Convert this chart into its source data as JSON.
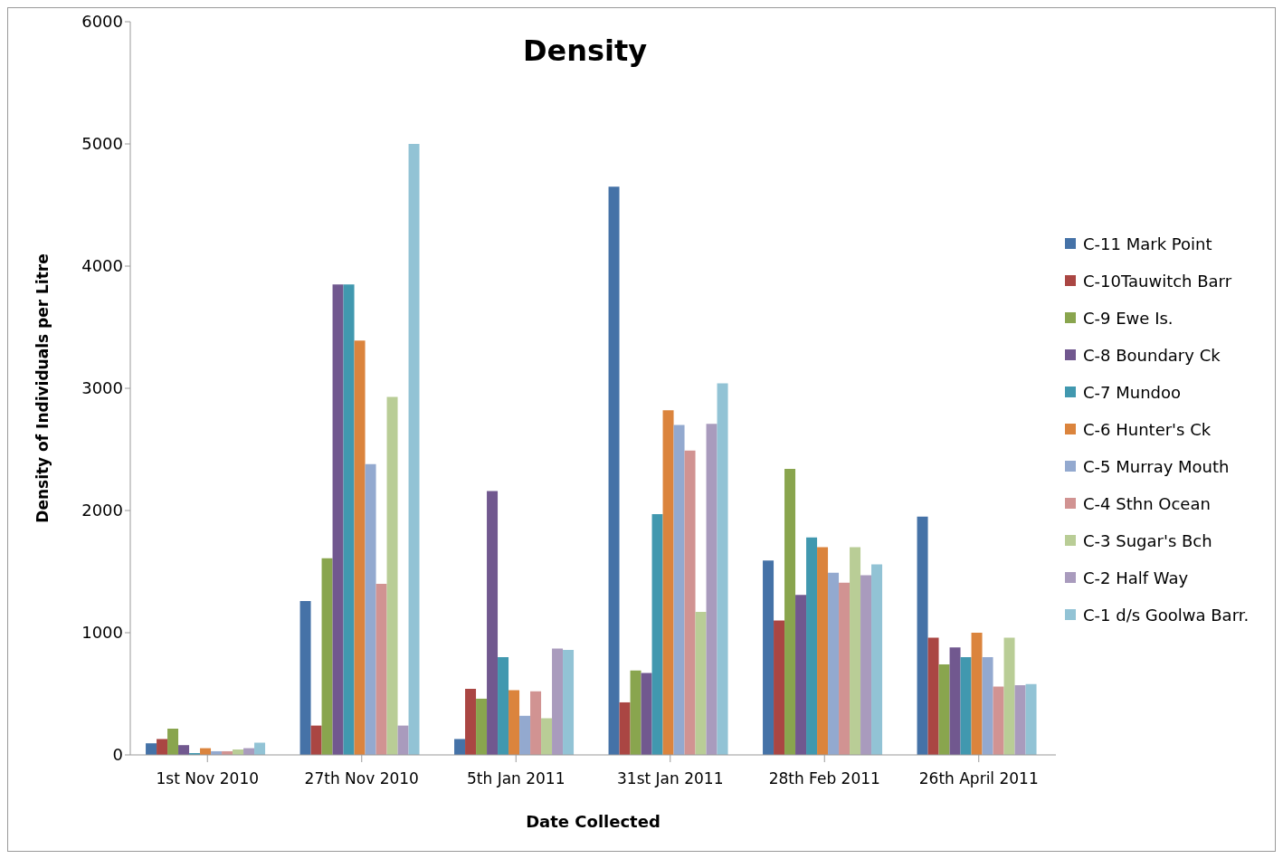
{
  "chart_data": {
    "type": "bar",
    "title": "Density",
    "xlabel": "Date Collected",
    "ylabel": "Density of Individuals per Litre",
    "categories": [
      "1st Nov 2010",
      "27th Nov 2010",
      "5th Jan 2011",
      "31st Jan 2011",
      "28th Feb 2011",
      "26th April 2011"
    ],
    "series": [
      {
        "name": "C-11 Mark Point",
        "color": "#4572a7",
        "values": [
          95,
          1260,
          130,
          4650,
          1590,
          1950
        ]
      },
      {
        "name": "C-10Tauwitch Barr",
        "color": "#aa4643",
        "values": [
          130,
          240,
          540,
          430,
          1100,
          960
        ]
      },
      {
        "name": "C-9 Ewe Is.",
        "color": "#89a54e",
        "values": [
          215,
          1610,
          460,
          690,
          2340,
          740
        ]
      },
      {
        "name": "C-8 Boundary Ck",
        "color": "#71588f",
        "values": [
          80,
          3850,
          2160,
          670,
          1310,
          880
        ]
      },
      {
        "name": "C-7 Mundoo",
        "color": "#4198af",
        "values": [
          15,
          3850,
          800,
          1970,
          1780,
          800
        ]
      },
      {
        "name": "C-6 Hunter's Ck",
        "color": "#db843d",
        "values": [
          55,
          3390,
          530,
          2820,
          1700,
          1000
        ]
      },
      {
        "name": "C-5 Murray Mouth",
        "color": "#93a9cf",
        "values": [
          30,
          2380,
          320,
          2700,
          1490,
          800
        ]
      },
      {
        "name": "C-4 Sthn Ocean",
        "color": "#d19392",
        "values": [
          30,
          1400,
          520,
          2490,
          1410,
          560
        ]
      },
      {
        "name": "C-3 Sugar's Bch",
        "color": "#b9cd96",
        "values": [
          45,
          2930,
          300,
          1170,
          1700,
          960
        ]
      },
      {
        "name": "C-2 Half Way",
        "color": "#a99bbd",
        "values": [
          55,
          240,
          870,
          2710,
          1470,
          570
        ]
      },
      {
        "name": "C-1 d/s Goolwa Barr.",
        "color": "#92c3d5",
        "values": [
          100,
          5000,
          860,
          3040,
          1560,
          580
        ]
      }
    ],
    "ylim": [
      0,
      6000
    ],
    "yticks": [
      0,
      1000,
      2000,
      3000,
      4000,
      5000,
      6000
    ],
    "grid": false,
    "legend": "right"
  }
}
